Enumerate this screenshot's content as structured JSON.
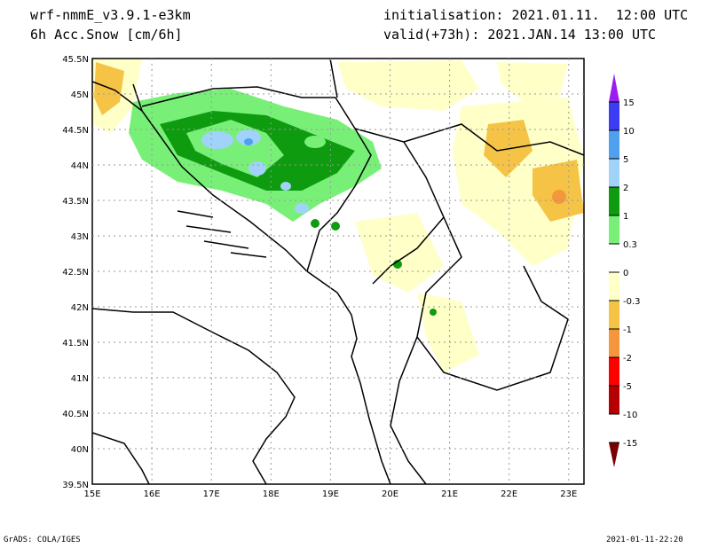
{
  "header": {
    "model": "wrf-nmmE_v3.9.1-e3km",
    "variable": "6h Acc.Snow [cm/6h]",
    "init": "initialisation: 2021.01.11.  12:00 UTC",
    "valid": "valid(+73h): 2021.JAN.14 13:00 UTC"
  },
  "axes": {
    "lat_labels": [
      "45.5N",
      "45N",
      "44.5N",
      "44N",
      "43.5N",
      "43N",
      "42.5N",
      "42N",
      "41.5N",
      "41N",
      "40.5N",
      "40N",
      "39.5N"
    ],
    "lon_labels": [
      "15E",
      "16E",
      "17E",
      "18E",
      "19E",
      "20E",
      "21E",
      "22E",
      "23E"
    ]
  },
  "colorbar": {
    "labels": [
      "15",
      "10",
      "5",
      "2",
      "1",
      "0.3",
      "0",
      "-0.3",
      "-1",
      "-2",
      "-5",
      "-10",
      "-15"
    ],
    "colors": [
      "#9a1ef0",
      "#3c3cf5",
      "#50a0f0",
      "#a0d2fa",
      "#0f9b0f",
      "#78f078",
      "#ffffff",
      "#ffffc8",
      "#f5c346",
      "#f5963c",
      "#ff0000",
      "#b40000",
      "#780000"
    ]
  },
  "footer": {
    "left": "GrADS: COLA/IGES",
    "right": "2021-01-11-22:20"
  }
}
